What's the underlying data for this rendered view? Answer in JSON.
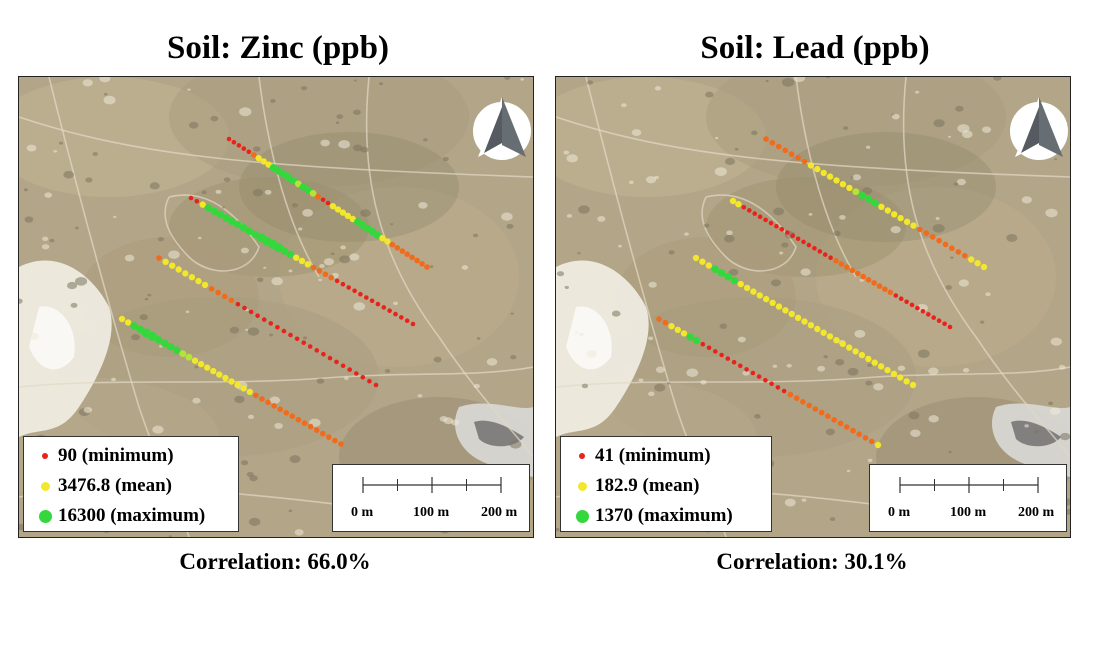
{
  "colors": {
    "minimum": "#e8231b",
    "mean": "#f2e72a",
    "maximum": "#34d83c",
    "mid_low": "#f06b1c",
    "mid_high": "#b6e33a",
    "imagery": "#b3a588"
  },
  "scale": {
    "labels": [
      "0 m",
      "100 m",
      "200 m"
    ]
  },
  "north_arrow": {
    "icon": "north-arrow-icon"
  },
  "panels": [
    {
      "title": "Soil: Zinc (ppb)",
      "legend": {
        "minimum": "90 (minimum)",
        "mean": "3476.8 (mean)",
        "maximum": "16300 (maximum)"
      },
      "correlation": "Correlation: 66.0%",
      "transects": [
        {
          "name": "transect-1",
          "values": [
            "r",
            "r",
            "r",
            "r",
            "r",
            "o",
            "y",
            "y",
            "y",
            "g",
            "g",
            "g",
            "g",
            "g",
            "m",
            "g",
            "g",
            "m",
            "o",
            "r",
            "r",
            "y",
            "y",
            "y",
            "y",
            "y",
            "g",
            "g",
            "g",
            "g",
            "g",
            "y",
            "y",
            "o",
            "o",
            "o",
            "o",
            "o",
            "o",
            "o",
            "o"
          ]
        },
        {
          "name": "transect-2",
          "values": [
            "r",
            "r",
            "y",
            "g",
            "g",
            "g",
            "g",
            "g",
            "g",
            "g",
            "g",
            "g",
            "G",
            "G",
            "G",
            "G",
            "g",
            "g",
            "y",
            "y",
            "y",
            "o",
            "o",
            "o",
            "o",
            "r",
            "r",
            "r",
            "r",
            "r",
            "r",
            "r",
            "r",
            "r",
            "r",
            "r",
            "r",
            "r",
            "r"
          ]
        },
        {
          "name": "transect-3",
          "values": [
            "o",
            "y",
            "y",
            "y",
            "y",
            "y",
            "y",
            "y",
            "o",
            "o",
            "o",
            "o",
            "r",
            "r",
            "r",
            "r",
            "r",
            "r",
            "r",
            "r",
            "r",
            "r",
            "r",
            "r",
            "r",
            "r",
            "r",
            "r",
            "r",
            "r",
            "r",
            "r",
            "r",
            "r"
          ]
        },
        {
          "name": "transect-4",
          "values": [
            "y",
            "y",
            "g",
            "g",
            "G",
            "G",
            "g",
            "g",
            "g",
            "g",
            "m",
            "m",
            "y",
            "y",
            "y",
            "y",
            "y",
            "y",
            "y",
            "y",
            "y",
            "y",
            "o",
            "o",
            "o",
            "o",
            "o",
            "o",
            "o",
            "o",
            "o",
            "o",
            "o",
            "o",
            "o",
            "o",
            "o"
          ]
        }
      ]
    },
    {
      "title": "Soil: Lead (ppb)",
      "legend": {
        "minimum": "41 (minimum)",
        "mean": "182.9 (mean)",
        "maximum": "1370 (maximum)"
      },
      "correlation": "Correlation: 30.1%",
      "transects": [
        {
          "name": "transect-1",
          "values": [
            "o",
            "o",
            "o",
            "o",
            "o",
            "o",
            "o",
            "y",
            "y",
            "y",
            "y",
            "y",
            "y",
            "y",
            "m",
            "g",
            "g",
            "g",
            "y",
            "y",
            "y",
            "y",
            "y",
            "y",
            "o",
            "o",
            "o",
            "o",
            "o",
            "o",
            "o",
            "o",
            "y",
            "y",
            "y"
          ]
        },
        {
          "name": "transect-2",
          "values": [
            "y",
            "y",
            "r",
            "r",
            "r",
            "r",
            "r",
            "r",
            "r",
            "r",
            "r",
            "r",
            "r",
            "r",
            "r",
            "r",
            "r",
            "r",
            "r",
            "o",
            "o",
            "o",
            "o",
            "o",
            "o",
            "o",
            "o",
            "o",
            "o",
            "o",
            "r",
            "r",
            "r",
            "r",
            "r",
            "r",
            "r",
            "r",
            "r",
            "r",
            "r"
          ]
        },
        {
          "name": "transect-3",
          "values": [
            "y",
            "y",
            "y",
            "g",
            "g",
            "g",
            "g",
            "y",
            "y",
            "y",
            "y",
            "y",
            "y",
            "y",
            "y",
            "y",
            "y",
            "y",
            "y",
            "y",
            "y",
            "y",
            "y",
            "y",
            "y",
            "y",
            "y",
            "y",
            "y",
            "y",
            "y",
            "y",
            "y",
            "y",
            "y"
          ]
        },
        {
          "name": "transect-4",
          "values": [
            "o",
            "o",
            "y",
            "y",
            "y",
            "g",
            "g",
            "r",
            "r",
            "r",
            "r",
            "r",
            "r",
            "r",
            "r",
            "r",
            "r",
            "r",
            "r",
            "r",
            "r",
            "o",
            "o",
            "o",
            "o",
            "o",
            "o",
            "o",
            "o",
            "o",
            "o",
            "o",
            "o",
            "o",
            "o",
            "y"
          ]
        }
      ]
    }
  ]
}
